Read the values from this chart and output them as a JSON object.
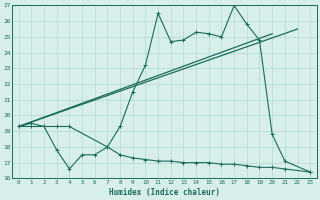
{
  "x_main": [
    0,
    1,
    2,
    3,
    4,
    7,
    8,
    9,
    10,
    11,
    12,
    13,
    14,
    15,
    16,
    17,
    18,
    19,
    20,
    21,
    23
  ],
  "y_main": [
    19.3,
    19.5,
    19.3,
    19.3,
    19.3,
    18.0,
    19.3,
    21.5,
    23.2,
    26.5,
    24.7,
    24.8,
    25.3,
    25.2,
    25.0,
    27.0,
    25.8,
    24.8,
    18.8,
    17.1,
    16.4
  ],
  "x_lower": [
    0,
    1,
    2,
    3,
    4,
    5,
    6,
    7,
    8,
    9,
    10,
    11,
    12,
    13,
    14,
    15,
    16,
    17,
    18,
    19,
    20,
    21,
    23
  ],
  "y_lower": [
    19.3,
    19.3,
    19.3,
    17.8,
    16.6,
    17.5,
    17.5,
    18.0,
    17.5,
    17.3,
    17.2,
    17.1,
    17.1,
    17.0,
    17.0,
    17.0,
    16.9,
    16.9,
    16.8,
    16.7,
    16.7,
    16.6,
    16.4
  ],
  "trend1_x": [
    0,
    20
  ],
  "trend1_y": [
    19.3,
    25.2
  ],
  "trend2_x": [
    0,
    22
  ],
  "trend2_y": [
    19.3,
    25.5
  ],
  "color": "#1a6b5a",
  "bg_color": "#d8eeeb",
  "grid_color": "#b8ddd8",
  "xlabel": "Humidex (Indice chaleur)",
  "ylim": [
    16,
    27
  ],
  "xlim": [
    -0.5,
    23.5
  ],
  "yticks": [
    16,
    17,
    18,
    19,
    20,
    21,
    22,
    23,
    24,
    25,
    26,
    27
  ],
  "xticks": [
    0,
    1,
    2,
    3,
    4,
    5,
    6,
    7,
    8,
    9,
    10,
    11,
    12,
    13,
    14,
    15,
    16,
    17,
    18,
    19,
    20,
    21,
    22,
    23
  ]
}
